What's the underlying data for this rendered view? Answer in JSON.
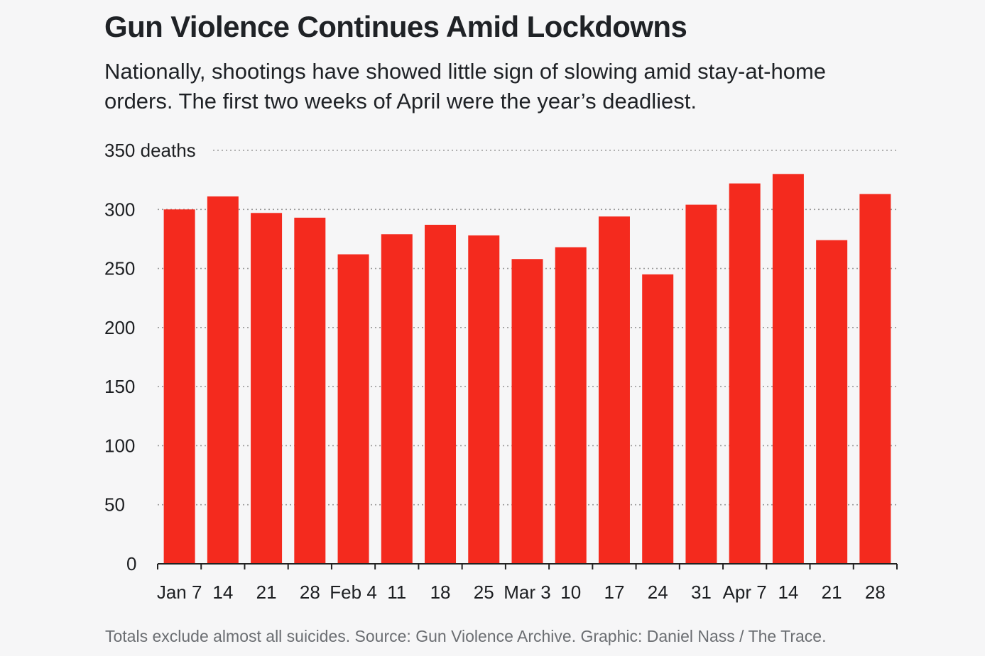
{
  "header": {
    "title": "Gun Violence Continues Amid Lockdowns",
    "subtitle": "Nationally, shootings have showed little sign of slowing amid stay-at-home orders. The first two weeks of April were the year’s deadliest."
  },
  "footer": {
    "note": "Totals exclude almost all suicides. Source: Gun Violence Archive. Graphic: Daniel Nass / The Trace."
  },
  "colors": {
    "bar": "#f42a1e",
    "grid": "#9a9a9a",
    "axis": "#222222"
  },
  "chart_data": {
    "type": "bar",
    "title": "Gun Violence Continues Amid Lockdowns",
    "ylabel": "",
    "ylim": [
      0,
      350
    ],
    "yticks": [
      0,
      50,
      100,
      150,
      200,
      250,
      300,
      350
    ],
    "ytick_labels": [
      "0",
      "50",
      "100",
      "150",
      "200",
      "250",
      "300",
      "350 deaths"
    ],
    "grid": true,
    "categories": [
      "Jan 7",
      "14",
      "21",
      "28",
      "Feb 4",
      "11",
      "18",
      "25",
      "Mar 3",
      "10",
      "17",
      "24",
      "31",
      "Apr 7",
      "14",
      "21",
      "28"
    ],
    "values": [
      300,
      311,
      297,
      293,
      262,
      279,
      287,
      278,
      258,
      268,
      294,
      245,
      304,
      322,
      330,
      274,
      313
    ]
  }
}
